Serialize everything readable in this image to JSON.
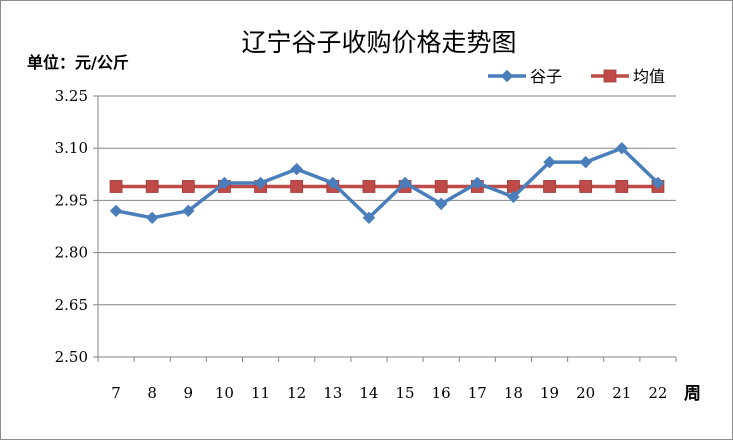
{
  "chart_data": {
    "type": "line",
    "title": "辽宁谷子收购价格走势图",
    "ylabel": "单位：元/公斤",
    "xlabel": "周",
    "categories": [
      "7",
      "8",
      "9",
      "10",
      "11",
      "12",
      "13",
      "14",
      "15",
      "16",
      "17",
      "18",
      "19",
      "20",
      "21",
      "22"
    ],
    "ylim": [
      2.5,
      3.25
    ],
    "yticks": [
      "2.50",
      "2.65",
      "2.80",
      "2.95",
      "3.10",
      "3.25"
    ],
    "grid": true,
    "legend_position": "top-right",
    "series": [
      {
        "name": "谷子",
        "color": "#4a7ebb",
        "marker": "diamond",
        "values": [
          2.92,
          2.9,
          2.92,
          3.0,
          3.0,
          3.04,
          3.0,
          2.9,
          3.0,
          2.94,
          3.0,
          2.96,
          3.06,
          3.06,
          3.1,
          3.0
        ]
      },
      {
        "name": "均值",
        "color": "#be4b48",
        "marker": "square",
        "values": [
          2.99,
          2.99,
          2.99,
          2.99,
          2.99,
          2.99,
          2.99,
          2.99,
          2.99,
          2.99,
          2.99,
          2.99,
          2.99,
          2.99,
          2.99,
          2.99
        ]
      }
    ]
  }
}
